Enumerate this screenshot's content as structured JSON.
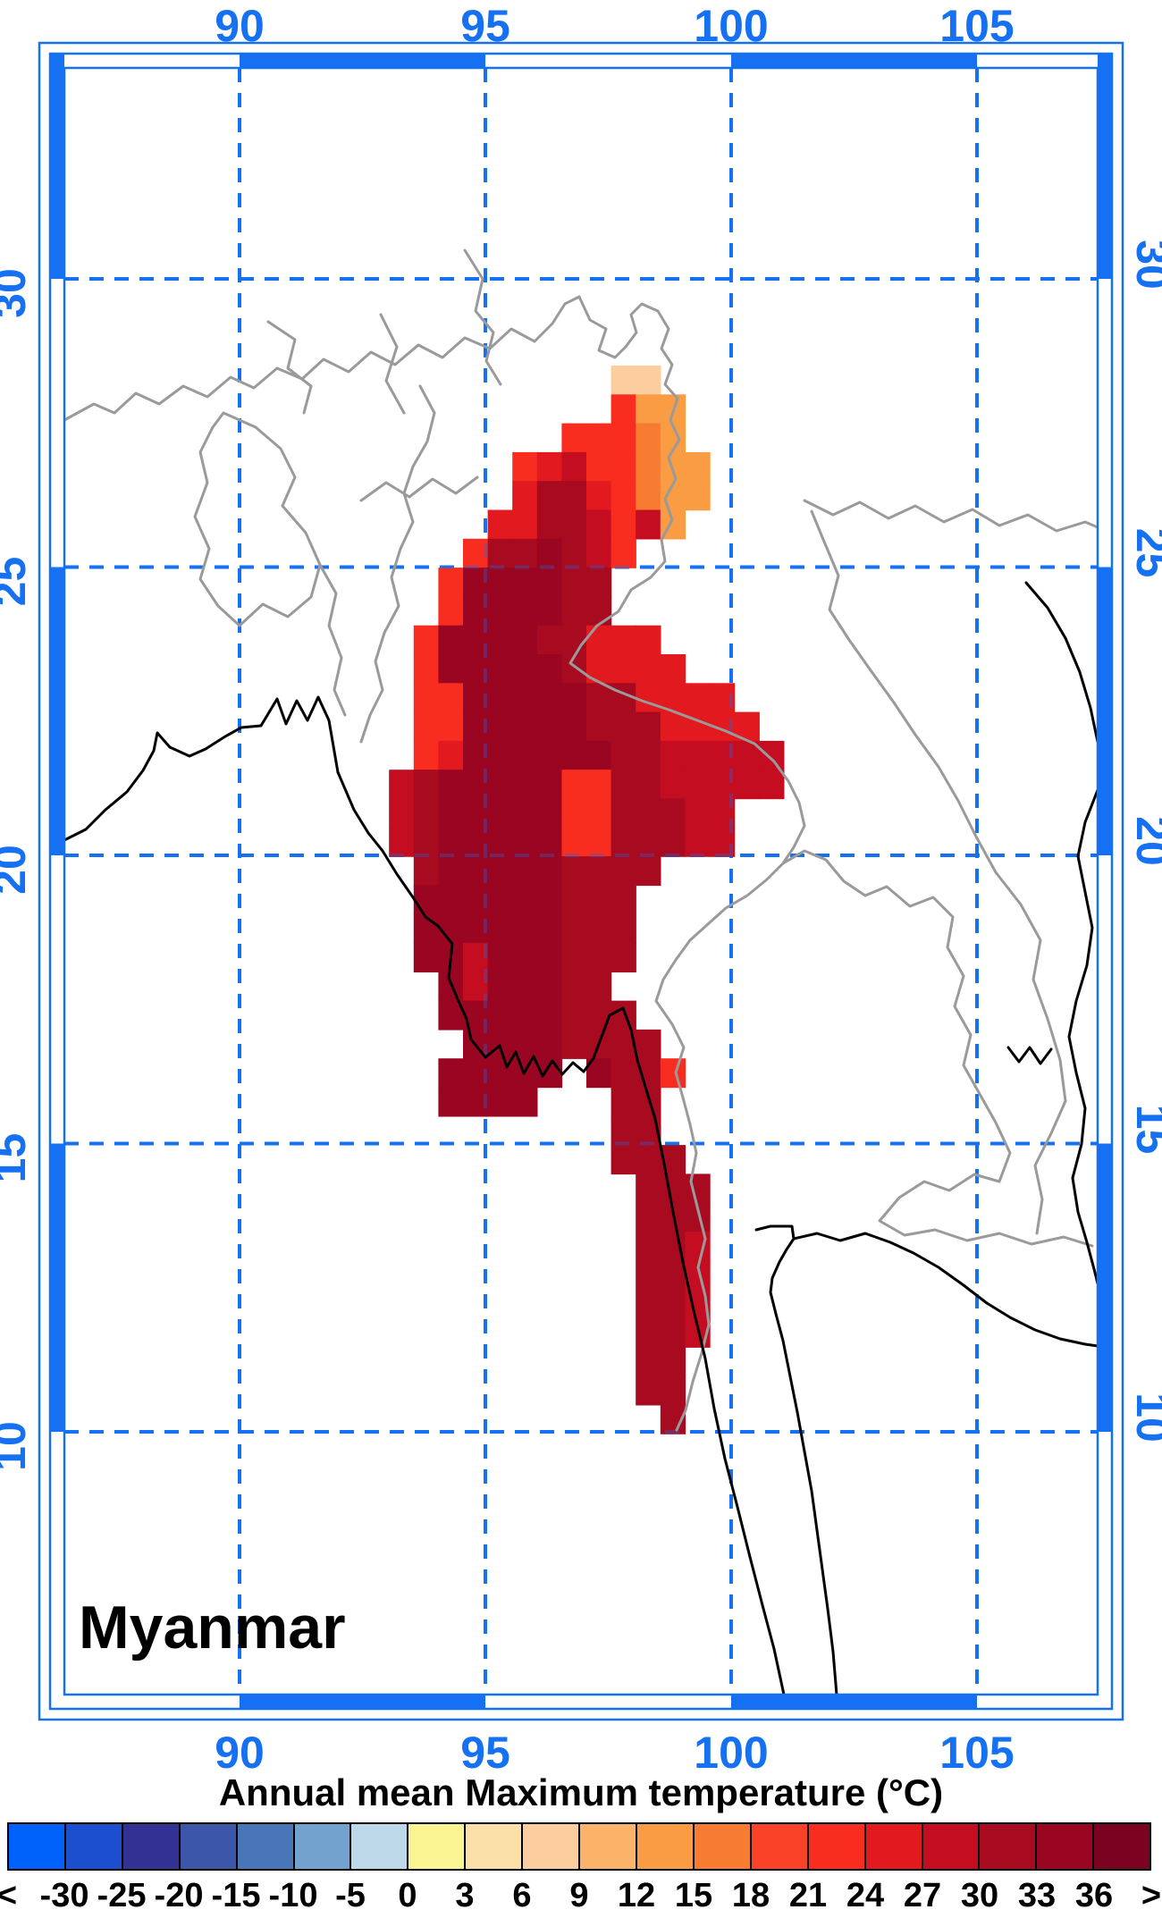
{
  "map": {
    "country_label": "Myanmar",
    "lon_tick_labels": [
      "90",
      "95",
      "100",
      "105"
    ],
    "lon_tick_values": [
      90,
      95,
      100,
      105
    ],
    "lat_tick_labels": [
      "30",
      "25",
      "20",
      "15",
      "10"
    ],
    "lat_tick_values": [
      30,
      25,
      20,
      15,
      10
    ],
    "frame_blue": "#1570F2",
    "grid_blue": "#1570F2",
    "border_gray": "#9a9a9a",
    "coast_black": "#000000"
  },
  "colorbar": {
    "title": "Annual mean Maximum temperature (°C)",
    "tick_labels": [
      "<",
      "-30",
      "-25",
      "-20",
      "-15",
      "-10",
      "-5",
      "0",
      "3",
      "6",
      "9",
      "12",
      "15",
      "18",
      "21",
      "24",
      "27",
      "30",
      "33",
      "36",
      ">"
    ],
    "segment_colors": [
      "#0060FA",
      "#1C4FD0",
      "#323295",
      "#3C56A9",
      "#4876B8",
      "#74A2CE",
      "#BDD9E9",
      "#FBF492",
      "#FBDFA8",
      "#FCCD9E",
      "#FBB269",
      "#F99C43",
      "#F87B32",
      "#F94227",
      "#F92C20",
      "#E2191E",
      "#C40D20",
      "#A80A20",
      "#9A0621",
      "#7C0222"
    ]
  },
  "chart_data": {
    "type": "heatmap",
    "title": "Annual mean Maximum temperature (°C)",
    "units": "°C",
    "region": "Myanmar",
    "lon_range": [
      92.0,
      101.5
    ],
    "lat_range": [
      10.0,
      28.5
    ],
    "cell_size_deg": 0.5,
    "palette": {
      "P": "#FCCD9E",
      "O": "#F99C43",
      "D": "#F87B32",
      "R": "#F92C20",
      "E": "#E2191E",
      "C": "#C40D20",
      "A": "#A80A20",
      "M": "#9A0621"
    },
    "palette_temp_bands": {
      "P": "6-9",
      "O": "12-15",
      "D": "15-18",
      "R": "21-24",
      "E": "24-27",
      "C": "27-30",
      "A": "30-33",
      "M": "33-36"
    },
    "rows_note": "rows from north (top lat 28.5) to south, 19 columns from lon 92.0 east in 0.5 deg steps, '.'=no data",
    "rows": [
      "...........PP......",
      "...........ROO.....",
      ".........RRRDO.....",
      ".......RECRRDOO....",
      ".......EAAERDOO....",
      "......EEAACRCO.....",
      ".....RAAMACR.......",
      "....RMMMMAA........",
      "....RMMMMAA........",
      "...RMMMMAAEEE......",
      "...RMMMMMAEEEE.....",
      "...RRMMMMMAAEEEE...",
      "...RRMMMMMAAAEEEE..",
      "...REMMMMMMAACCCCC.",
      "..CAMMMMMRRAACCCCC.",
      "..CAMMMMMRRAAACC...",
      "..CAMMMMMRRAAACC...",
      "...AMMMMMAAAA......",
      "...MMMMMMAAA.......",
      "...MMMMMMAAA.......",
      "...MMCMMMAAA.......",
      "....MCMMMAA........",
      "....MMMMMAAA.......",
      ".....MMMMAAAA......",
      "....MMMMM.MAAR.....",
      "....MMMM...AA......",
      "...........AA......",
      "...........AAA.....",
      "............AAA....",
      "............AAA....",
      "............AAC....",
      "............AAC....",
      "............AAC....",
      "............AAC....",
      "............AA.....",
      "............AA.....",
      ".............A....."
    ]
  }
}
